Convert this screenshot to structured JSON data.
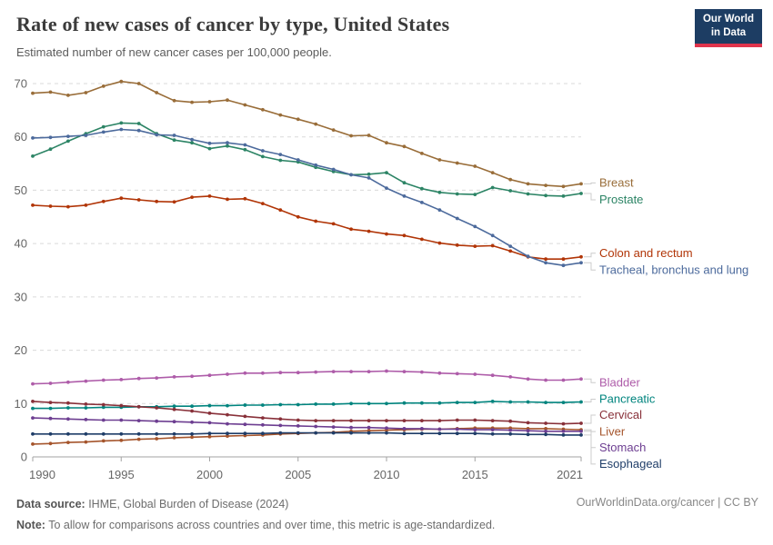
{
  "header": {
    "title": "Rate of new cases of cancer by type, United States",
    "subtitle": "Estimated number of new cancer cases per 100,000 people.",
    "logo": {
      "line1": "Our World",
      "line2": "in Data",
      "bg_color": "#1d3d63",
      "accent_color": "#e0344c"
    }
  },
  "chart_data": {
    "type": "line",
    "title": "Rate of new cases of cancer by type, United States",
    "xlabel": "",
    "ylabel": "",
    "ylim": [
      0,
      70
    ],
    "grid": "horizontal-dashed",
    "legend_position": "right-end-labels",
    "x_ticks": [
      1990,
      1995,
      2000,
      2005,
      2010,
      2015,
      2021
    ],
    "y_ticks": [
      0,
      10,
      20,
      30,
      40,
      50,
      60,
      70
    ],
    "years": [
      1990,
      1991,
      1992,
      1993,
      1994,
      1995,
      1996,
      1997,
      1998,
      1999,
      2000,
      2001,
      2002,
      2003,
      2004,
      2005,
      2006,
      2007,
      2008,
      2009,
      2010,
      2011,
      2012,
      2013,
      2014,
      2015,
      2016,
      2017,
      2018,
      2019,
      2020,
      2021
    ],
    "series": [
      {
        "name": "Breast",
        "color": "#996D39",
        "values": [
          68.2,
          68.4,
          67.8,
          68.3,
          69.5,
          70.4,
          70.0,
          68.3,
          66.8,
          66.5,
          66.6,
          66.9,
          66.0,
          65.1,
          64.1,
          63.3,
          62.4,
          61.3,
          60.2,
          60.3,
          58.9,
          58.2,
          56.9,
          55.7,
          55.1,
          54.5,
          53.3,
          52.0,
          51.2,
          50.9,
          50.7,
          51.2
        ]
      },
      {
        "name": "Prostate",
        "color": "#2C8465",
        "values": [
          56.4,
          57.7,
          59.2,
          60.6,
          61.9,
          62.6,
          62.5,
          60.6,
          59.4,
          58.9,
          57.8,
          58.3,
          57.6,
          56.3,
          55.6,
          55.3,
          54.3,
          53.5,
          52.9,
          53.0,
          53.3,
          51.4,
          50.3,
          49.6,
          49.3,
          49.2,
          50.5,
          49.9,
          49.3,
          49.0,
          48.9,
          49.4
        ]
      },
      {
        "name": "Colon and rectum",
        "color": "#B13507",
        "values": [
          47.2,
          47.0,
          46.9,
          47.2,
          47.9,
          48.5,
          48.2,
          47.9,
          47.8,
          48.7,
          48.9,
          48.3,
          48.4,
          47.5,
          46.3,
          45.0,
          44.2,
          43.7,
          42.7,
          42.3,
          41.8,
          41.5,
          40.8,
          40.1,
          39.7,
          39.5,
          39.6,
          38.6,
          37.5,
          37.1,
          37.1,
          37.5
        ]
      },
      {
        "name": "Tracheal, bronchus and lung",
        "color": "#4C6A9C",
        "values": [
          59.8,
          59.9,
          60.1,
          60.3,
          60.9,
          61.4,
          61.2,
          60.4,
          60.3,
          59.5,
          58.8,
          58.9,
          58.5,
          57.4,
          56.7,
          55.7,
          54.7,
          53.9,
          52.9,
          52.3,
          50.4,
          48.9,
          47.7,
          46.3,
          44.7,
          43.2,
          41.5,
          39.5,
          37.6,
          36.4,
          35.9,
          36.4
        ]
      },
      {
        "name": "Bladder",
        "color": "#AE5CA9",
        "values": [
          13.7,
          13.8,
          14.0,
          14.2,
          14.4,
          14.5,
          14.7,
          14.8,
          15.0,
          15.1,
          15.3,
          15.5,
          15.7,
          15.7,
          15.8,
          15.8,
          15.9,
          16.0,
          16.0,
          16.0,
          16.1,
          16.0,
          15.9,
          15.7,
          15.6,
          15.5,
          15.3,
          15.0,
          14.6,
          14.4,
          14.4,
          14.6
        ]
      },
      {
        "name": "Pancreatic",
        "color": "#00847E",
        "values": [
          9.1,
          9.1,
          9.2,
          9.2,
          9.3,
          9.3,
          9.4,
          9.4,
          9.5,
          9.5,
          9.6,
          9.6,
          9.7,
          9.7,
          9.8,
          9.8,
          9.9,
          9.9,
          10.0,
          10.0,
          10.0,
          10.1,
          10.1,
          10.1,
          10.2,
          10.2,
          10.4,
          10.3,
          10.3,
          10.2,
          10.2,
          10.3
        ]
      },
      {
        "name": "Cervical",
        "color": "#883039",
        "values": [
          10.4,
          10.2,
          10.1,
          9.9,
          9.8,
          9.6,
          9.4,
          9.2,
          8.9,
          8.6,
          8.2,
          7.9,
          7.6,
          7.3,
          7.1,
          6.9,
          6.8,
          6.8,
          6.8,
          6.8,
          6.8,
          6.8,
          6.8,
          6.8,
          6.9,
          6.9,
          6.8,
          6.7,
          6.4,
          6.3,
          6.2,
          6.3
        ]
      },
      {
        "name": "Liver",
        "color": "#A5552C",
        "values": [
          2.4,
          2.5,
          2.7,
          2.8,
          3.0,
          3.1,
          3.3,
          3.4,
          3.6,
          3.7,
          3.8,
          3.9,
          4.0,
          4.1,
          4.3,
          4.4,
          4.5,
          4.6,
          4.8,
          4.9,
          5.0,
          5.1,
          5.2,
          5.2,
          5.3,
          5.4,
          5.4,
          5.4,
          5.3,
          5.3,
          5.2,
          5.1
        ]
      },
      {
        "name": "Stomach",
        "color": "#6D3E91",
        "values": [
          7.3,
          7.2,
          7.1,
          7.0,
          6.9,
          6.9,
          6.8,
          6.7,
          6.6,
          6.5,
          6.4,
          6.2,
          6.1,
          6.0,
          5.9,
          5.8,
          5.7,
          5.6,
          5.5,
          5.5,
          5.4,
          5.3,
          5.3,
          5.2,
          5.2,
          5.1,
          5.1,
          5.0,
          4.9,
          4.8,
          4.8,
          4.8
        ]
      },
      {
        "name": "Esophageal",
        "color": "#1F3D68",
        "values": [
          4.3,
          4.3,
          4.3,
          4.3,
          4.3,
          4.3,
          4.3,
          4.3,
          4.3,
          4.3,
          4.4,
          4.4,
          4.4,
          4.4,
          4.5,
          4.5,
          4.5,
          4.5,
          4.5,
          4.5,
          4.5,
          4.4,
          4.4,
          4.4,
          4.4,
          4.4,
          4.3,
          4.3,
          4.2,
          4.2,
          4.1,
          4.1
        ]
      }
    ]
  },
  "footer": {
    "source_label": "Data source:",
    "source_text": " IHME, Global Burden of Disease (2024)",
    "note_label": "Note:",
    "note_text": " To allow for comparisons across countries and over time, this metric is age-standardized.",
    "rights": "OurWorldinData.org/cancer | CC BY"
  }
}
